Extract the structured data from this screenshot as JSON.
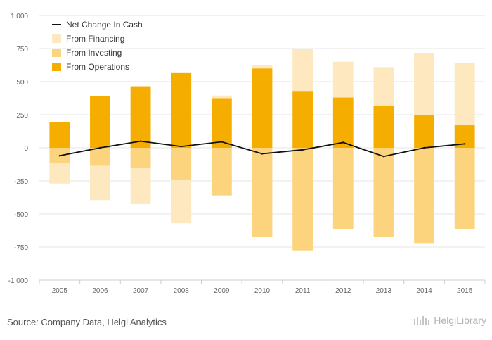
{
  "chart_data": {
    "type": "bar",
    "stacked": true,
    "categories": [
      "2005",
      "2006",
      "2007",
      "2008",
      "2009",
      "2010",
      "2011",
      "2012",
      "2013",
      "2014",
      "2015"
    ],
    "series": [
      {
        "name": "From Operations",
        "kind": "bar",
        "color": "#F5AD00",
        "values": [
          195,
          390,
          465,
          570,
          375,
          600,
          430,
          380,
          315,
          245,
          170
        ]
      },
      {
        "name": "From Investing",
        "kind": "bar",
        "color": "#FCD47D",
        "values": [
          -115,
          -135,
          -155,
          -245,
          -360,
          -675,
          -775,
          -615,
          -675,
          -720,
          -615
        ]
      },
      {
        "name": "From Financing",
        "kind": "bar",
        "color": "#FDE8C0",
        "values": [
          -155,
          -260,
          -270,
          -325,
          20,
          25,
          320,
          270,
          295,
          470,
          470
        ]
      },
      {
        "name": "Net Change In Cash",
        "kind": "line",
        "color": "#111111",
        "values": [
          -60,
          0,
          50,
          10,
          45,
          -45,
          -15,
          40,
          -65,
          0,
          30
        ]
      }
    ],
    "ylim": [
      -1000,
      1000
    ],
    "yticks": [
      1000,
      750,
      500,
      250,
      0,
      -250,
      -500,
      -750,
      -1000
    ],
    "ytick_labels": [
      "1 000",
      "750",
      "500",
      "250",
      "0",
      "-250",
      "-500",
      "-750",
      "-1 000"
    ],
    "legend_order": [
      "Net Change In Cash",
      "From Financing",
      "From Investing",
      "From Operations"
    ],
    "legend_position": "top-left",
    "grid": true
  },
  "footer": {
    "source": "Source: Company Data, Helgi Analytics",
    "brand": "HelgiLibrary"
  }
}
